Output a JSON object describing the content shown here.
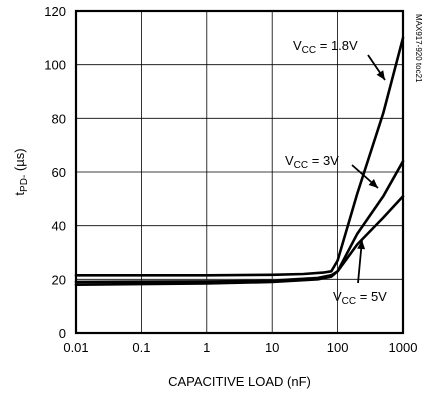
{
  "chart_data": {
    "type": "line",
    "xlabel": "CAPACITIVE LOAD (nF)",
    "ylabel": {
      "main": "t",
      "sub": "PD-",
      "unit": " (µs)"
    },
    "x_scale": "log",
    "xlim": [
      0.01,
      1000
    ],
    "ylim": [
      0,
      120
    ],
    "x_ticks": [
      0.01,
      0.1,
      1,
      10,
      100,
      1000
    ],
    "x_tick_labels": [
      "0.01",
      "0.1",
      "1",
      "10",
      "100",
      "1000"
    ],
    "y_ticks": [
      0,
      20,
      40,
      60,
      80,
      100,
      120
    ],
    "y_tick_labels": [
      "0",
      "20",
      "40",
      "60",
      "80",
      "100",
      "120"
    ],
    "grid": true,
    "side_note": "MAX917-920 toc21",
    "series": [
      {
        "label": {
          "main": "V",
          "sub": "CC",
          "value": " = 1.8V"
        },
        "x": [
          0.01,
          1,
          10,
          30,
          60,
          80,
          100,
          200,
          500,
          1000
        ],
        "y": [
          21.5,
          21.5,
          21.7,
          22.0,
          22.5,
          23.0,
          27.0,
          52.0,
          82.0,
          110.0
        ]
      },
      {
        "label": {
          "main": "V",
          "sub": "CC",
          "value": " = 3V"
        },
        "x": [
          0.01,
          1,
          10,
          50,
          80,
          100,
          200,
          500,
          1000
        ],
        "y": [
          19.0,
          19.2,
          19.5,
          20.5,
          21.5,
          23.0,
          37.0,
          51.0,
          64.0
        ],
        "color": "#000000"
      },
      {
        "label": {
          "main": "V",
          "sub": "CC",
          "value": " = 5V"
        },
        "x": [
          0.01,
          1,
          10,
          50,
          80,
          100,
          200,
          500,
          1000
        ],
        "y": [
          18.0,
          18.5,
          19.0,
          20.0,
          21.0,
          23.0,
          33.0,
          43.0,
          51.0
        ]
      }
    ],
    "gray_series": {
      "x": [
        0.01,
        1,
        10,
        50,
        80,
        90
      ],
      "y": [
        19.0,
        19.2,
        19.5,
        20.5,
        21.5,
        22.0
      ]
    }
  }
}
